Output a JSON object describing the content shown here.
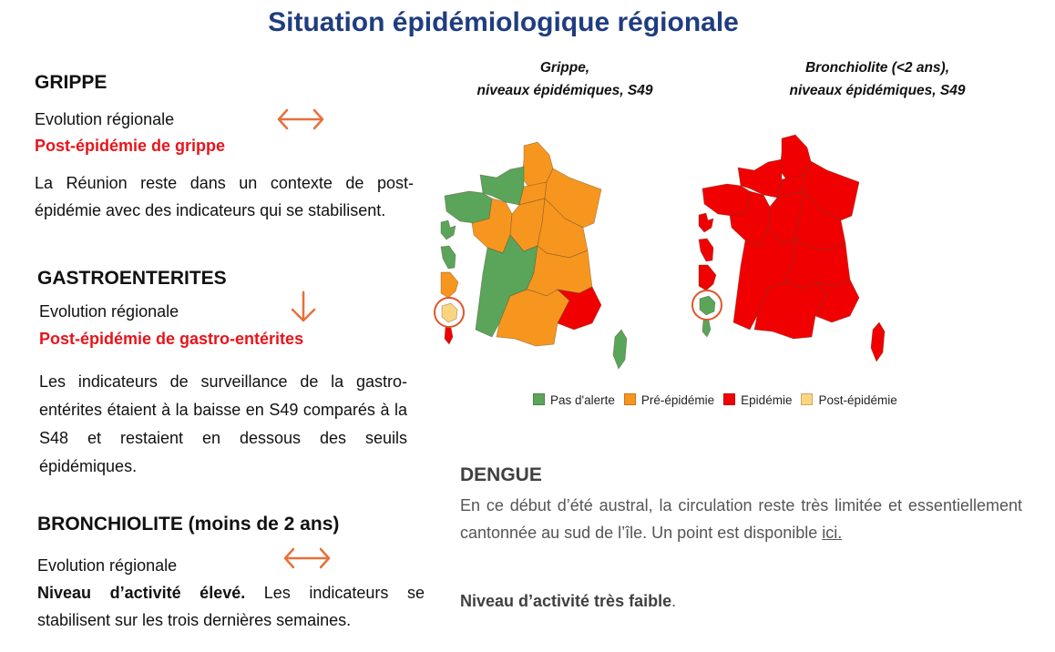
{
  "title": "Situation épidémiologique régionale",
  "grippe": {
    "heading": "GRIPPE",
    "evolution_label": "Evolution régionale",
    "trend_icon": "left-right-arrow",
    "status": "Post-épidémie de grippe",
    "text": "La Réunion reste dans un contexte de post-épidémie avec des indicateurs qui se stabilisent."
  },
  "gastro": {
    "heading": "GASTROENTERITES",
    "evolution_label": "Evolution régionale",
    "trend_icon": "down-arrow",
    "status": "Post-épidémie de gastro-entérites",
    "text": "Les indicateurs de surveillance de la gastro-entérites étaient à la baisse en S49 comparés à la S48 et restaient  en dessous des seuils épidémiques."
  },
  "bronchiolite": {
    "heading": "BRONCHIOLITE (moins de 2 ans)",
    "evolution_label": "Evolution régionale",
    "trend_icon": "left-right-arrow",
    "status_bold": "Niveau d’activité élevé.",
    "text": " Les indicateurs se stabilisent sur les trois dernières semaines."
  },
  "maps": [
    {
      "title_line1": "Gripppe,",
      "title": [
        "Grippe,",
        "niveaux épidémiques, S49"
      ],
      "regions": {
        "hdf": "pre",
        "normandie": "none",
        "bretagne": "none",
        "idf": "pre",
        "grandest": "pre",
        "pdl": "pre",
        "centre": "pre",
        "bourgogne": "pre",
        "naq": "none",
        "ara": "pre",
        "occitanie": "pre",
        "paca": "epi",
        "corse": "none",
        "guadeloupe": "none",
        "martinique": "none",
        "guyane": "pre",
        "reunion": "post",
        "mayotte": "epi"
      }
    },
    {
      "title": [
        "Bronchiolite (<2 ans),",
        "niveaux épidémiques, S49"
      ],
      "regions": {
        "hdf": "epi",
        "normandie": "epi",
        "bretagne": "epi",
        "idf": "epi",
        "grandest": "epi",
        "pdl": "epi",
        "centre": "epi",
        "bourgogne": "epi",
        "naq": "epi",
        "ara": "epi",
        "occitanie": "epi",
        "paca": "epi",
        "corse": "epi",
        "guadeloupe": "epi",
        "martinique": "epi",
        "guyane": "epi",
        "reunion": "none",
        "mayotte": "none"
      }
    }
  ],
  "legend": [
    {
      "key": "none",
      "label": "Pas d'alerte",
      "color": "#5aa55a"
    },
    {
      "key": "pre",
      "label": "Pré-épidémie",
      "color": "#f7961e"
    },
    {
      "key": "epi",
      "label": "Epidémie",
      "color": "#f00000"
    },
    {
      "key": "post",
      "label": "Post-épidémie",
      "color": "#fdd580"
    }
  ],
  "highlight_color": "#e0562a",
  "dengue": {
    "heading": "DENGUE",
    "text": "En ce début d’été austral, la circulation reste très limitée et essentiellement cantonnée au sud de l’île. Un point est disponible ",
    "link": "ici.",
    "level_bold": "Niveau d’activité très faible",
    "level_end": "."
  }
}
